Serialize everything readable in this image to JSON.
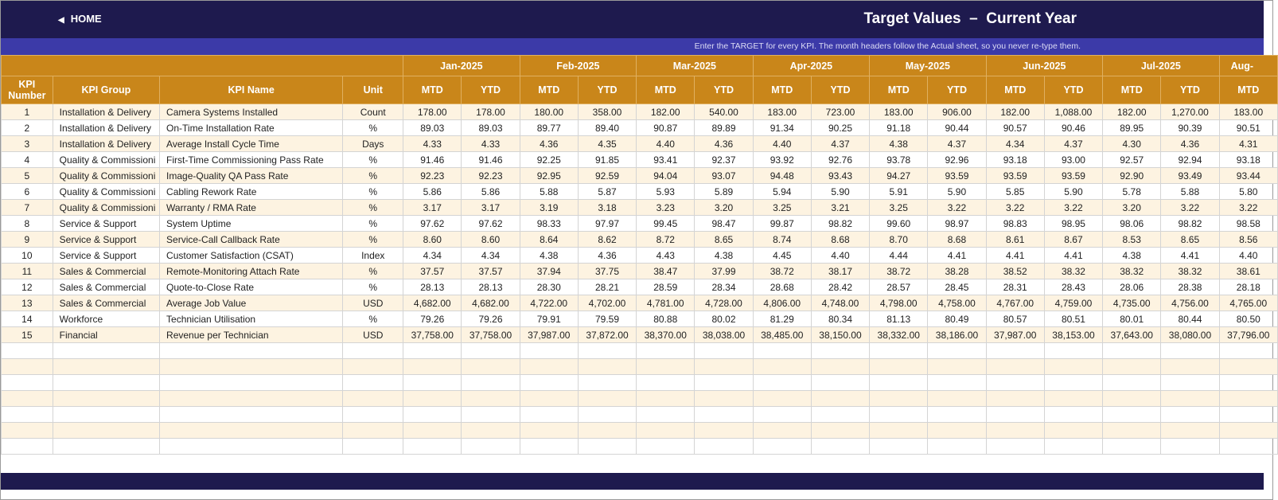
{
  "header": {
    "home": "HOME",
    "title": "Target Values  –  Current Year"
  },
  "banner": "Enter the TARGET for every KPI. The month headers follow the Actual sheet, so you never re-type them.",
  "table": {
    "columns": [
      "KPI Number",
      "KPI Group",
      "KPI Name",
      "Unit"
    ],
    "months": [
      "Jan-2025",
      "Feb-2025",
      "Mar-2025",
      "Apr-2025",
      "May-2025",
      "Jun-2025",
      "Jul-2025",
      "Aug-"
    ],
    "sub_headers": [
      "MTD",
      "YTD",
      "MTD",
      "YTD",
      "MTD",
      "YTD",
      "MTD",
      "YTD",
      "MTD",
      "YTD",
      "MTD",
      "YTD",
      "MTD",
      "YTD",
      "MTD"
    ],
    "rows": [
      [
        "1",
        "Installation & Delivery",
        "Camera Systems Installed",
        "Count",
        "178.00",
        "178.00",
        "180.00",
        "358.00",
        "182.00",
        "540.00",
        "183.00",
        "723.00",
        "183.00",
        "906.00",
        "182.00",
        "1,088.00",
        "182.00",
        "1,270.00",
        "183.00"
      ],
      [
        "2",
        "Installation & Delivery",
        "On-Time Installation Rate",
        "%",
        "89.03",
        "89.03",
        "89.77",
        "89.40",
        "90.87",
        "89.89",
        "91.34",
        "90.25",
        "91.18",
        "90.44",
        "90.57",
        "90.46",
        "89.95",
        "90.39",
        "90.51"
      ],
      [
        "3",
        "Installation & Delivery",
        "Average Install Cycle Time",
        "Days",
        "4.33",
        "4.33",
        "4.36",
        "4.35",
        "4.40",
        "4.36",
        "4.40",
        "4.37",
        "4.38",
        "4.37",
        "4.34",
        "4.37",
        "4.30",
        "4.36",
        "4.31"
      ],
      [
        "4",
        "Quality & Commissioni",
        "First-Time Commissioning Pass Rate",
        "%",
        "91.46",
        "91.46",
        "92.25",
        "91.85",
        "93.41",
        "92.37",
        "93.92",
        "92.76",
        "93.78",
        "92.96",
        "93.18",
        "93.00",
        "92.57",
        "92.94",
        "93.18"
      ],
      [
        "5",
        "Quality & Commissioni",
        "Image-Quality QA Pass Rate",
        "%",
        "92.23",
        "92.23",
        "92.95",
        "92.59",
        "94.04",
        "93.07",
        "94.48",
        "93.43",
        "94.27",
        "93.59",
        "93.59",
        "93.59",
        "92.90",
        "93.49",
        "93.44"
      ],
      [
        "6",
        "Quality & Commissioni",
        "Cabling Rework Rate",
        "%",
        "5.86",
        "5.86",
        "5.88",
        "5.87",
        "5.93",
        "5.89",
        "5.94",
        "5.90",
        "5.91",
        "5.90",
        "5.85",
        "5.90",
        "5.78",
        "5.88",
        "5.80"
      ],
      [
        "7",
        "Quality & Commissioni",
        "Warranty / RMA Rate",
        "%",
        "3.17",
        "3.17",
        "3.19",
        "3.18",
        "3.23",
        "3.20",
        "3.25",
        "3.21",
        "3.25",
        "3.22",
        "3.22",
        "3.22",
        "3.20",
        "3.22",
        "3.22"
      ],
      [
        "8",
        "Service & Support",
        "System Uptime",
        "%",
        "97.62",
        "97.62",
        "98.33",
        "97.97",
        "99.45",
        "98.47",
        "99.87",
        "98.82",
        "99.60",
        "98.97",
        "98.83",
        "98.95",
        "98.06",
        "98.82",
        "98.58"
      ],
      [
        "9",
        "Service & Support",
        "Service-Call Callback Rate",
        "%",
        "8.60",
        "8.60",
        "8.64",
        "8.62",
        "8.72",
        "8.65",
        "8.74",
        "8.68",
        "8.70",
        "8.68",
        "8.61",
        "8.67",
        "8.53",
        "8.65",
        "8.56"
      ],
      [
        "10",
        "Service & Support",
        "Customer Satisfaction (CSAT)",
        "Index",
        "4.34",
        "4.34",
        "4.38",
        "4.36",
        "4.43",
        "4.38",
        "4.45",
        "4.40",
        "4.44",
        "4.41",
        "4.41",
        "4.41",
        "4.38",
        "4.41",
        "4.40"
      ],
      [
        "11",
        "Sales & Commercial",
        "Remote-Monitoring Attach Rate",
        "%",
        "37.57",
        "37.57",
        "37.94",
        "37.75",
        "38.47",
        "37.99",
        "38.72",
        "38.17",
        "38.72",
        "38.28",
        "38.52",
        "38.32",
        "38.32",
        "38.32",
        "38.61"
      ],
      [
        "12",
        "Sales & Commercial",
        "Quote-to-Close Rate",
        "%",
        "28.13",
        "28.13",
        "28.30",
        "28.21",
        "28.59",
        "28.34",
        "28.68",
        "28.42",
        "28.57",
        "28.45",
        "28.31",
        "28.43",
        "28.06",
        "28.38",
        "28.18"
      ],
      [
        "13",
        "Sales & Commercial",
        "Average Job Value",
        "USD",
        "4,682.00",
        "4,682.00",
        "4,722.00",
        "4,702.00",
        "4,781.00",
        "4,728.00",
        "4,806.00",
        "4,748.00",
        "4,798.00",
        "4,758.00",
        "4,767.00",
        "4,759.00",
        "4,735.00",
        "4,756.00",
        "4,765.00"
      ],
      [
        "14",
        "Workforce",
        "Technician Utilisation",
        "%",
        "79.26",
        "79.26",
        "79.91",
        "79.59",
        "80.88",
        "80.02",
        "81.29",
        "80.34",
        "81.13",
        "80.49",
        "80.57",
        "80.51",
        "80.01",
        "80.44",
        "80.50"
      ],
      [
        "15",
        "Financial",
        "Revenue per Technician",
        "USD",
        "37,758.00",
        "37,758.00",
        "37,987.00",
        "37,872.00",
        "38,370.00",
        "38,038.00",
        "38,485.00",
        "38,150.00",
        "38,332.00",
        "38,186.00",
        "37,987.00",
        "38,153.00",
        "37,643.00",
        "38,080.00",
        "37,796.00"
      ]
    ]
  }
}
